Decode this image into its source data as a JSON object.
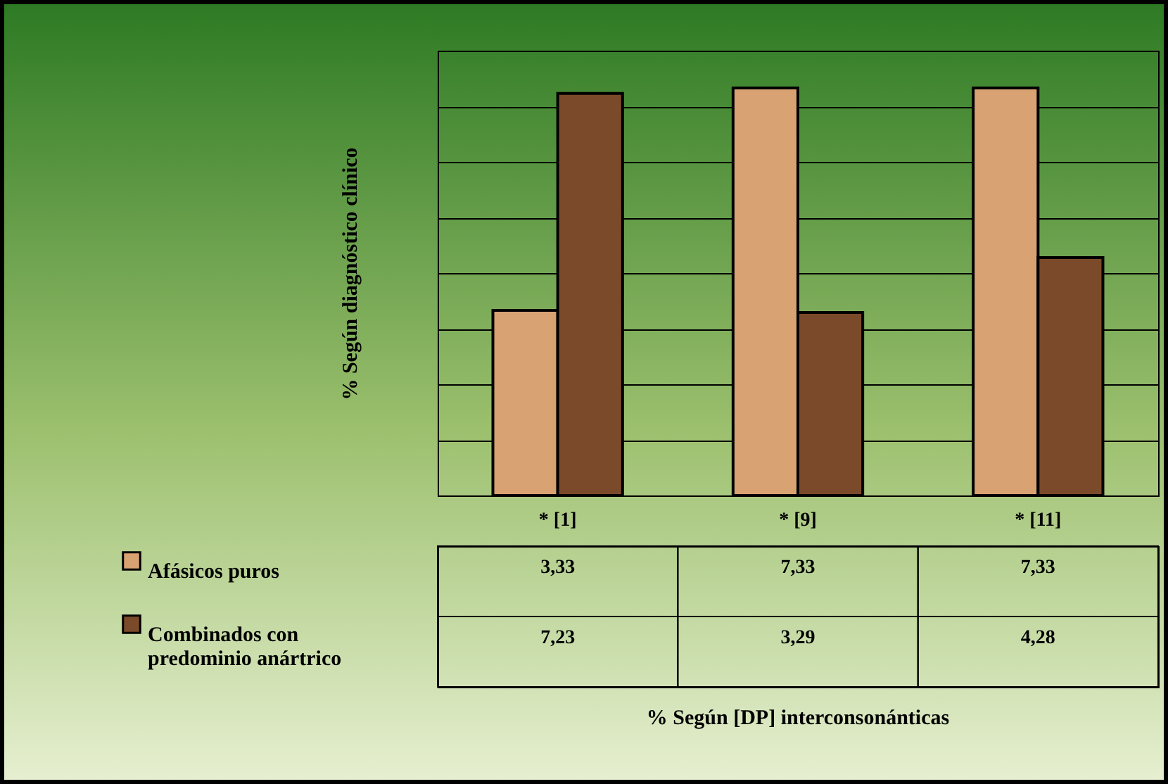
{
  "chart_data": {
    "type": "bar",
    "ylabel": "% Según diagnóstico clínico",
    "categories": [
      "* [1]",
      "* [9]",
      "* [11]"
    ],
    "series": [
      {
        "name": "Afásicos puros",
        "color": "#d9a272",
        "values": [
          3.33,
          7.33,
          7.33
        ],
        "value_labels": [
          "3,33",
          "7,33",
          "7,33"
        ]
      },
      {
        "name": "Combinados con predominio anártrico",
        "color": "#7b4a2a",
        "values": [
          7.23,
          3.29,
          4.28
        ],
        "value_labels": [
          "7,23",
          "3,29",
          "4,28"
        ]
      }
    ],
    "annotations": [
      "% Según [DP] interconsonánticas"
    ],
    "tick_labels": "x",
    "grid": "y",
    "legend": "bottom left"
  }
}
